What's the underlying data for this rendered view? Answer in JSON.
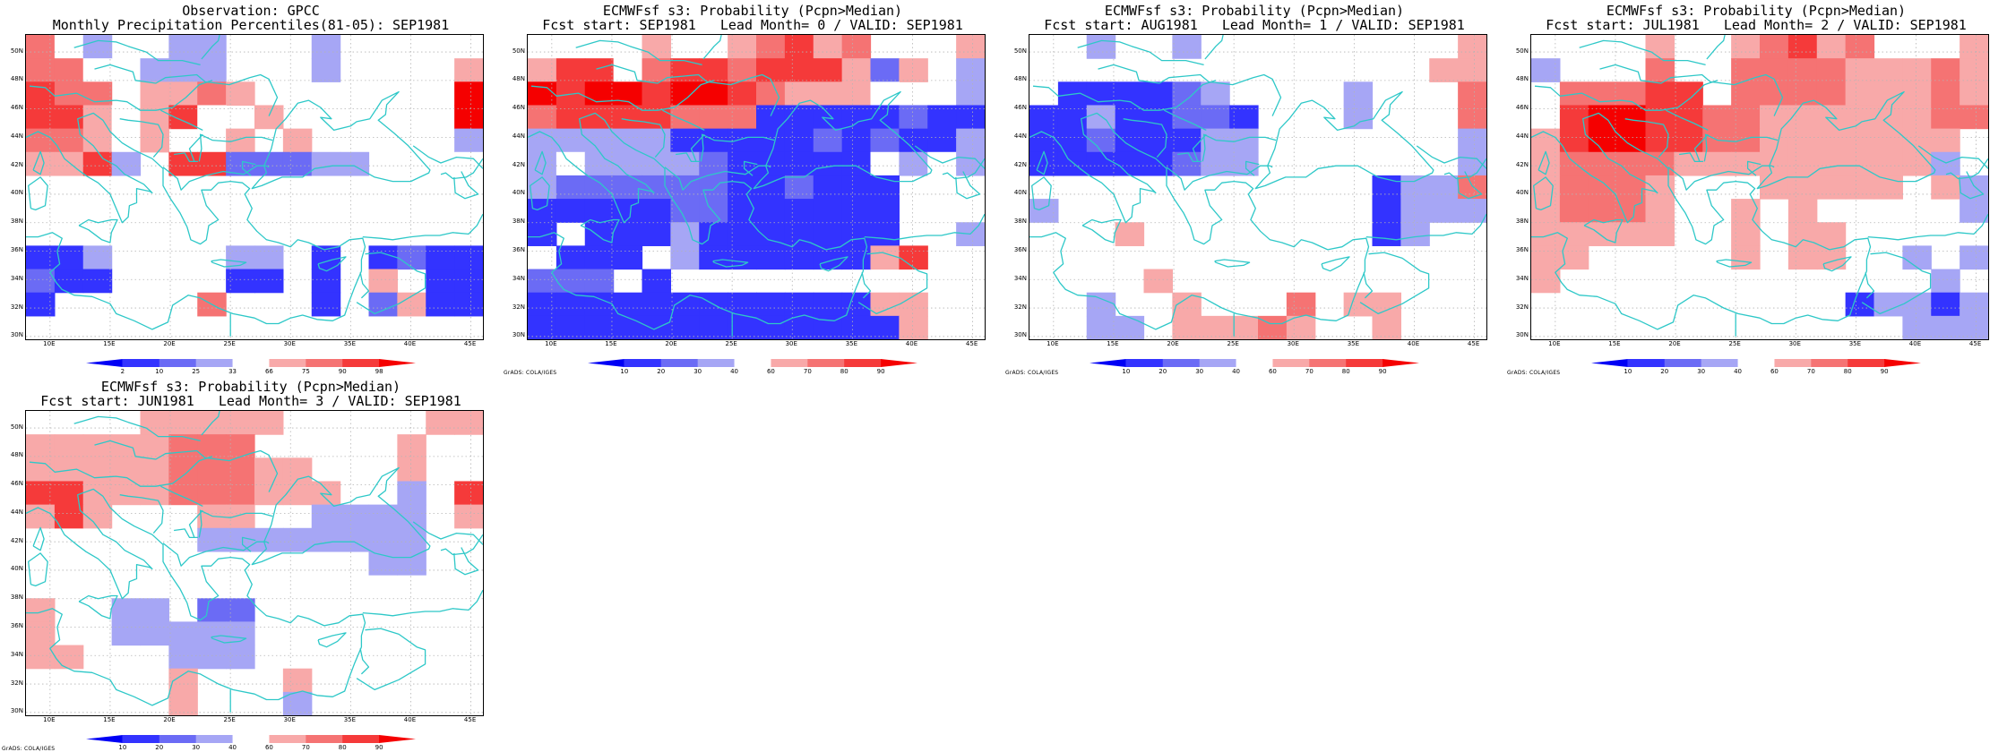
{
  "colors": {
    "ramp": [
      "#0000f5",
      "#3333ff",
      "#6b6bf5",
      "#a6a6f5",
      "#ffffff",
      "#f8a9a9",
      "#f57373",
      "#f53a3a",
      "#f50000"
    ],
    "coast": "#2ec8c8",
    "grid": "#b4b4b4",
    "frame": "#000000"
  },
  "map": {
    "lat_ticks": [
      "30N",
      "32N",
      "34N",
      "36N",
      "38N",
      "40N",
      "42N",
      "44N",
      "46N",
      "48N",
      "50N"
    ],
    "lon_ticks": [
      "10E",
      "15E",
      "20E",
      "25E",
      "30E",
      "35E",
      "40E",
      "45E"
    ],
    "lon_range": [
      8,
      46
    ],
    "lat_range": [
      29.8,
      51.2
    ]
  },
  "panels": [
    {
      "title1": "Observation: GPCC",
      "title2": "Monthly Precipitation Percentiles(81-05): SEP1981",
      "colorbar_labels": [
        "2",
        "10",
        "25",
        "33",
        "66",
        "75",
        "90",
        "98"
      ],
      "credit": "",
      "grid": [
        "6430033000300000",
        "6640333040304005",
        "7660556500004008",
        "7754574050000008",
        "6654500505000003",
        "5573077222330004",
        "0000000000000000",
        "0000000000000000",
        "0000000000000000",
        "1130000330101211",
        "2110000110105011",
        "1000006000102511",
        "0000000000000000"
      ]
    },
    {
      "title1": "ECMWFsf s3: Probability (Pcpn>Median)",
      "title2": "Fcst start: SEP1981   Lead Month= 0 / VALID: SEP1981",
      "colorbar_labels": [
        "10",
        "20",
        "30",
        "40",
        "60",
        "70",
        "80",
        "90"
      ],
      "credit": "GrADS: COLA/IGES",
      "grid": [
        "0000500567560005",
        "5774677677752503",
        "8788788765554003",
        "6777766611111211",
        "3333311111212113",
        "3433332111114343",
        "3222222112111000",
        "1111122111111000",
        "1011131111111003",
        "0111031111115700",
        "2220100000000000",
        "1111111111115500",
        "1111111111111500"
      ]
    },
    {
      "title1": "ECMWFsf s3: Probability (Pcpn>Median)",
      "title2": "Fcst start: AUG1981   Lead Month= 1 / VALID: SEP1981",
      "colorbar_labels": [
        "10",
        "20",
        "30",
        "40",
        "60",
        "70",
        "80",
        "90"
      ],
      "credit": "GrADS: COLA/IGES",
      "grid": [
        "0030030000000005",
        "0000000000000055",
        "0111123000030006",
        "1131122100030006",
        "1121113300000003",
        "1111123300000003",
        "0000000000001336",
        "3000000000001333",
        "0005000000001300",
        "0000000000000000",
        "0000500000000000",
        "0030050006055000",
        "0033055565005000"
      ]
    },
    {
      "title1": "ECMWFsf s3: Probability (Pcpn>Median)",
      "title2": "Fcst start: JUL1981   Lead Month= 2 / VALID: SEP1981",
      "colorbar_labels": [
        "10",
        "20",
        "30",
        "40",
        "60",
        "70",
        "80",
        "90"
      ],
      "credit": "GrADS: COLA/IGES",
      "grid": [
        "0000500567560005",
        "3000600666655565",
        "0666770666655565",
        "0788776655555566",
        "5788776655555550",
        "5666655555555530",
        "5666500055555053",
        "5666500505000003",
        "5555500505500000",
        "5500000505500303",
        "5000000000000030",
        "0000000000013313",
        "0000000000000333"
      ]
    },
    {
      "title1": "ECMWFsf s3: Probability (Pcpn>Median)",
      "title2": "Fcst start: JUN1981   Lead Month= 3 / VALID: SEP1981",
      "colorbar_labels": [
        "10",
        "20",
        "30",
        "40",
        "60",
        "70",
        "80",
        "90"
      ],
      "credit": "GrADS: COLA/IGES",
      "grid": [
        "0000555550000055",
        "5555566600000500",
        "5555566655000500",
        "7755566655500307",
        "5750005500333305",
        "0000003333333300",
        "0000000000003300",
        "0000000000000000",
        "5003302200000000",
        "5003333300000000",
        "5500033300000000",
        "0000050005000000",
        "0000050003000000"
      ]
    }
  ]
}
